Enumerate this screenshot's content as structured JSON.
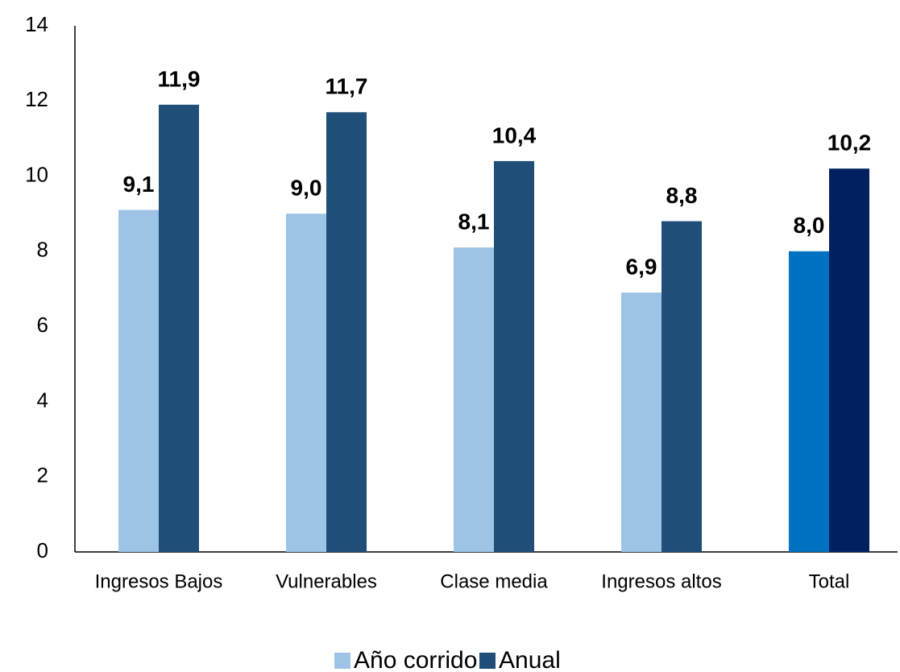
{
  "chart_data": {
    "type": "bar",
    "categories": [
      "Ingresos Bajos",
      "Vulnerables",
      "Clase media",
      "Ingresos altos",
      "Total"
    ],
    "series": [
      {
        "name": "Año corrido",
        "color": "#9DC3E6",
        "colors": [
          "#9DC3E6",
          "#9DC3E6",
          "#9DC3E6",
          "#9DC3E6",
          "#0070C0"
        ],
        "values": [
          9.1,
          9.0,
          8.1,
          6.9,
          8.0
        ],
        "value_labels": [
          "9,1",
          "9,0",
          "8,1",
          "6,9",
          "8,0"
        ]
      },
      {
        "name": "Anual",
        "color": "#1F4E79",
        "colors": [
          "#1F4E79",
          "#1F4E79",
          "#1F4E79",
          "#1F4E79",
          "#002060"
        ],
        "values": [
          11.9,
          11.7,
          10.4,
          8.8,
          10.2
        ],
        "value_labels": [
          "11,9",
          "11,7",
          "10,4",
          "8,8",
          "10,2"
        ]
      }
    ],
    "ylim": [
      0,
      14
    ],
    "yticks": [
      0,
      2,
      4,
      6,
      8,
      10,
      12,
      14
    ],
    "grid": false,
    "legend": "bottom"
  }
}
